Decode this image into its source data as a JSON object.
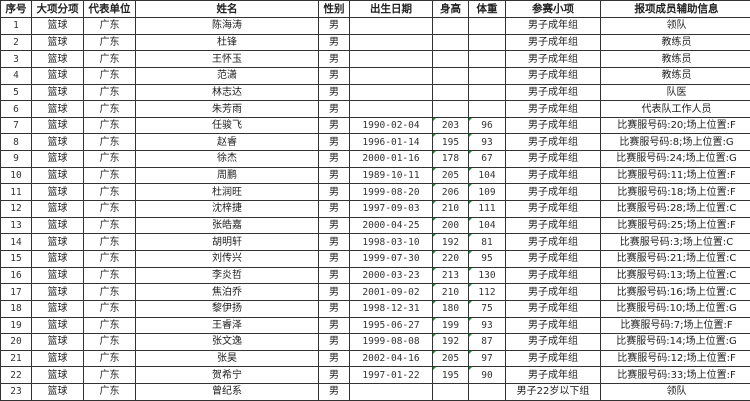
{
  "columns": [
    "序号",
    "大项分项",
    "代表单位",
    "姓名",
    "性别",
    "出生日期",
    "身高",
    "体重",
    "参赛小项",
    "报项成员辅助信息"
  ],
  "rows": [
    [
      "1",
      "篮球",
      "广东",
      "陈海涛",
      "男",
      "",
      "",
      "",
      "男子成年组",
      "领队"
    ],
    [
      "2",
      "篮球",
      "广东",
      "杜锋",
      "男",
      "",
      "",
      "",
      "男子成年组",
      "教练员"
    ],
    [
      "3",
      "篮球",
      "广东",
      "王怀玉",
      "男",
      "",
      "",
      "",
      "男子成年组",
      "教练员"
    ],
    [
      "4",
      "篮球",
      "广东",
      "范潇",
      "男",
      "",
      "",
      "",
      "男子成年组",
      "教练员"
    ],
    [
      "5",
      "篮球",
      "广东",
      "林志达",
      "男",
      "",
      "",
      "",
      "男子成年组",
      "队医"
    ],
    [
      "6",
      "篮球",
      "广东",
      "朱芳雨",
      "男",
      "",
      "",
      "",
      "男子成年组",
      "代表队工作人员"
    ],
    [
      "7",
      "篮球",
      "广东",
      "任骏飞",
      "男",
      "1990-02-04",
      "203",
      "96",
      "男子成年组",
      "比赛服号码:20;场上位置:F"
    ],
    [
      "8",
      "篮球",
      "广东",
      "赵睿",
      "男",
      "1996-01-14",
      "195",
      "93",
      "男子成年组",
      "比赛服号码:8;场上位置:G"
    ],
    [
      "9",
      "篮球",
      "广东",
      "徐杰",
      "男",
      "2000-01-16",
      "178",
      "67",
      "男子成年组",
      "比赛服号码:24;场上位置:G"
    ],
    [
      "10",
      "篮球",
      "广东",
      "周鹏",
      "男",
      "1989-10-11",
      "205",
      "104",
      "男子成年组",
      "比赛服号码:11;场上位置:F"
    ],
    [
      "11",
      "篮球",
      "广东",
      "杜润旺",
      "男",
      "1999-08-20",
      "206",
      "109",
      "男子成年组",
      "比赛服号码:18;场上位置:F"
    ],
    [
      "12",
      "篮球",
      "广东",
      "沈梓捷",
      "男",
      "1997-09-03",
      "210",
      "111",
      "男子成年组",
      "比赛服号码:28;场上位置:C"
    ],
    [
      "13",
      "篮球",
      "广东",
      "张皓嘉",
      "男",
      "2000-04-25",
      "200",
      "104",
      "男子成年组",
      "比赛服号码:25;场上位置:F"
    ],
    [
      "14",
      "篮球",
      "广东",
      "胡明轩",
      "男",
      "1998-03-10",
      "192",
      "81",
      "男子成年组",
      "比赛服号码:3;场上位置:C"
    ],
    [
      "15",
      "篮球",
      "广东",
      "刘传兴",
      "男",
      "1999-07-30",
      "220",
      "95",
      "男子成年组",
      "比赛服号码:21;场上位置:C"
    ],
    [
      "16",
      "篮球",
      "广东",
      "李炎哲",
      "男",
      "2000-03-23",
      "213",
      "130",
      "男子成年组",
      "比赛服号码:13;场上位置:C"
    ],
    [
      "17",
      "篮球",
      "广东",
      "焦泊乔",
      "男",
      "2001-09-02",
      "210",
      "112",
      "男子成年组",
      "比赛服号码:16;场上位置:C"
    ],
    [
      "18",
      "篮球",
      "广东",
      "黎伊扬",
      "男",
      "1998-12-31",
      "180",
      "75",
      "男子成年组",
      "比赛服号码:10;场上位置:G"
    ],
    [
      "19",
      "篮球",
      "广东",
      "王睿泽",
      "男",
      "1995-06-27",
      "199",
      "93",
      "男子成年组",
      "比赛服号码:7;场上位置:F"
    ],
    [
      "20",
      "篮球",
      "广东",
      "张文逸",
      "男",
      "1999-08-08",
      "192",
      "87",
      "男子成年组",
      "比赛服号码:14;场上位置:G"
    ],
    [
      "21",
      "篮球",
      "广东",
      "张昊",
      "男",
      "2002-04-16",
      "205",
      "97",
      "男子成年组",
      "比赛服号码:12;场上位置:F"
    ],
    [
      "22",
      "篮球",
      "广东",
      "贺希宁",
      "男",
      "1997-01-22",
      "195",
      "90",
      "男子成年组",
      "比赛服号码:33;场上位置:F"
    ],
    [
      "23",
      "篮球",
      "广东",
      "曾纪系",
      "男",
      "",
      "",
      "",
      "男子22岁以下组",
      "领队"
    ]
  ],
  "colors": {
    "grid": "#333333",
    "note_marker": "#1a8a3a"
  }
}
